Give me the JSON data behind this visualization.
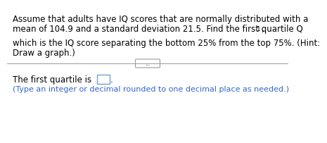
{
  "line1": "Assume that adults have IQ scores that are normally distributed with a",
  "line2a": "mean of 104.9 and a standard deviation 21.5. Find the first quartile Q",
  "line2_sub": "1",
  "line2b": ",",
  "line3": "which is the IQ score separating the bottom 25% from the top 75%. (Hint:",
  "line4": "Draw a graph.)",
  "divider_label": "...",
  "answer_prefix": "The first quartile is ",
  "answer_period": ".",
  "answer_note": "(Type an integer or decimal rounded to one decimal place as needed.)",
  "text_color": "#000000",
  "blue_color": "#3366cc",
  "box_edge_color": "#6699cc",
  "bg_color": "#ffffff",
  "divider_color": "#999999",
  "font_size_main": 8.5,
  "font_size_sub": 6.5,
  "font_size_note": 8.0
}
